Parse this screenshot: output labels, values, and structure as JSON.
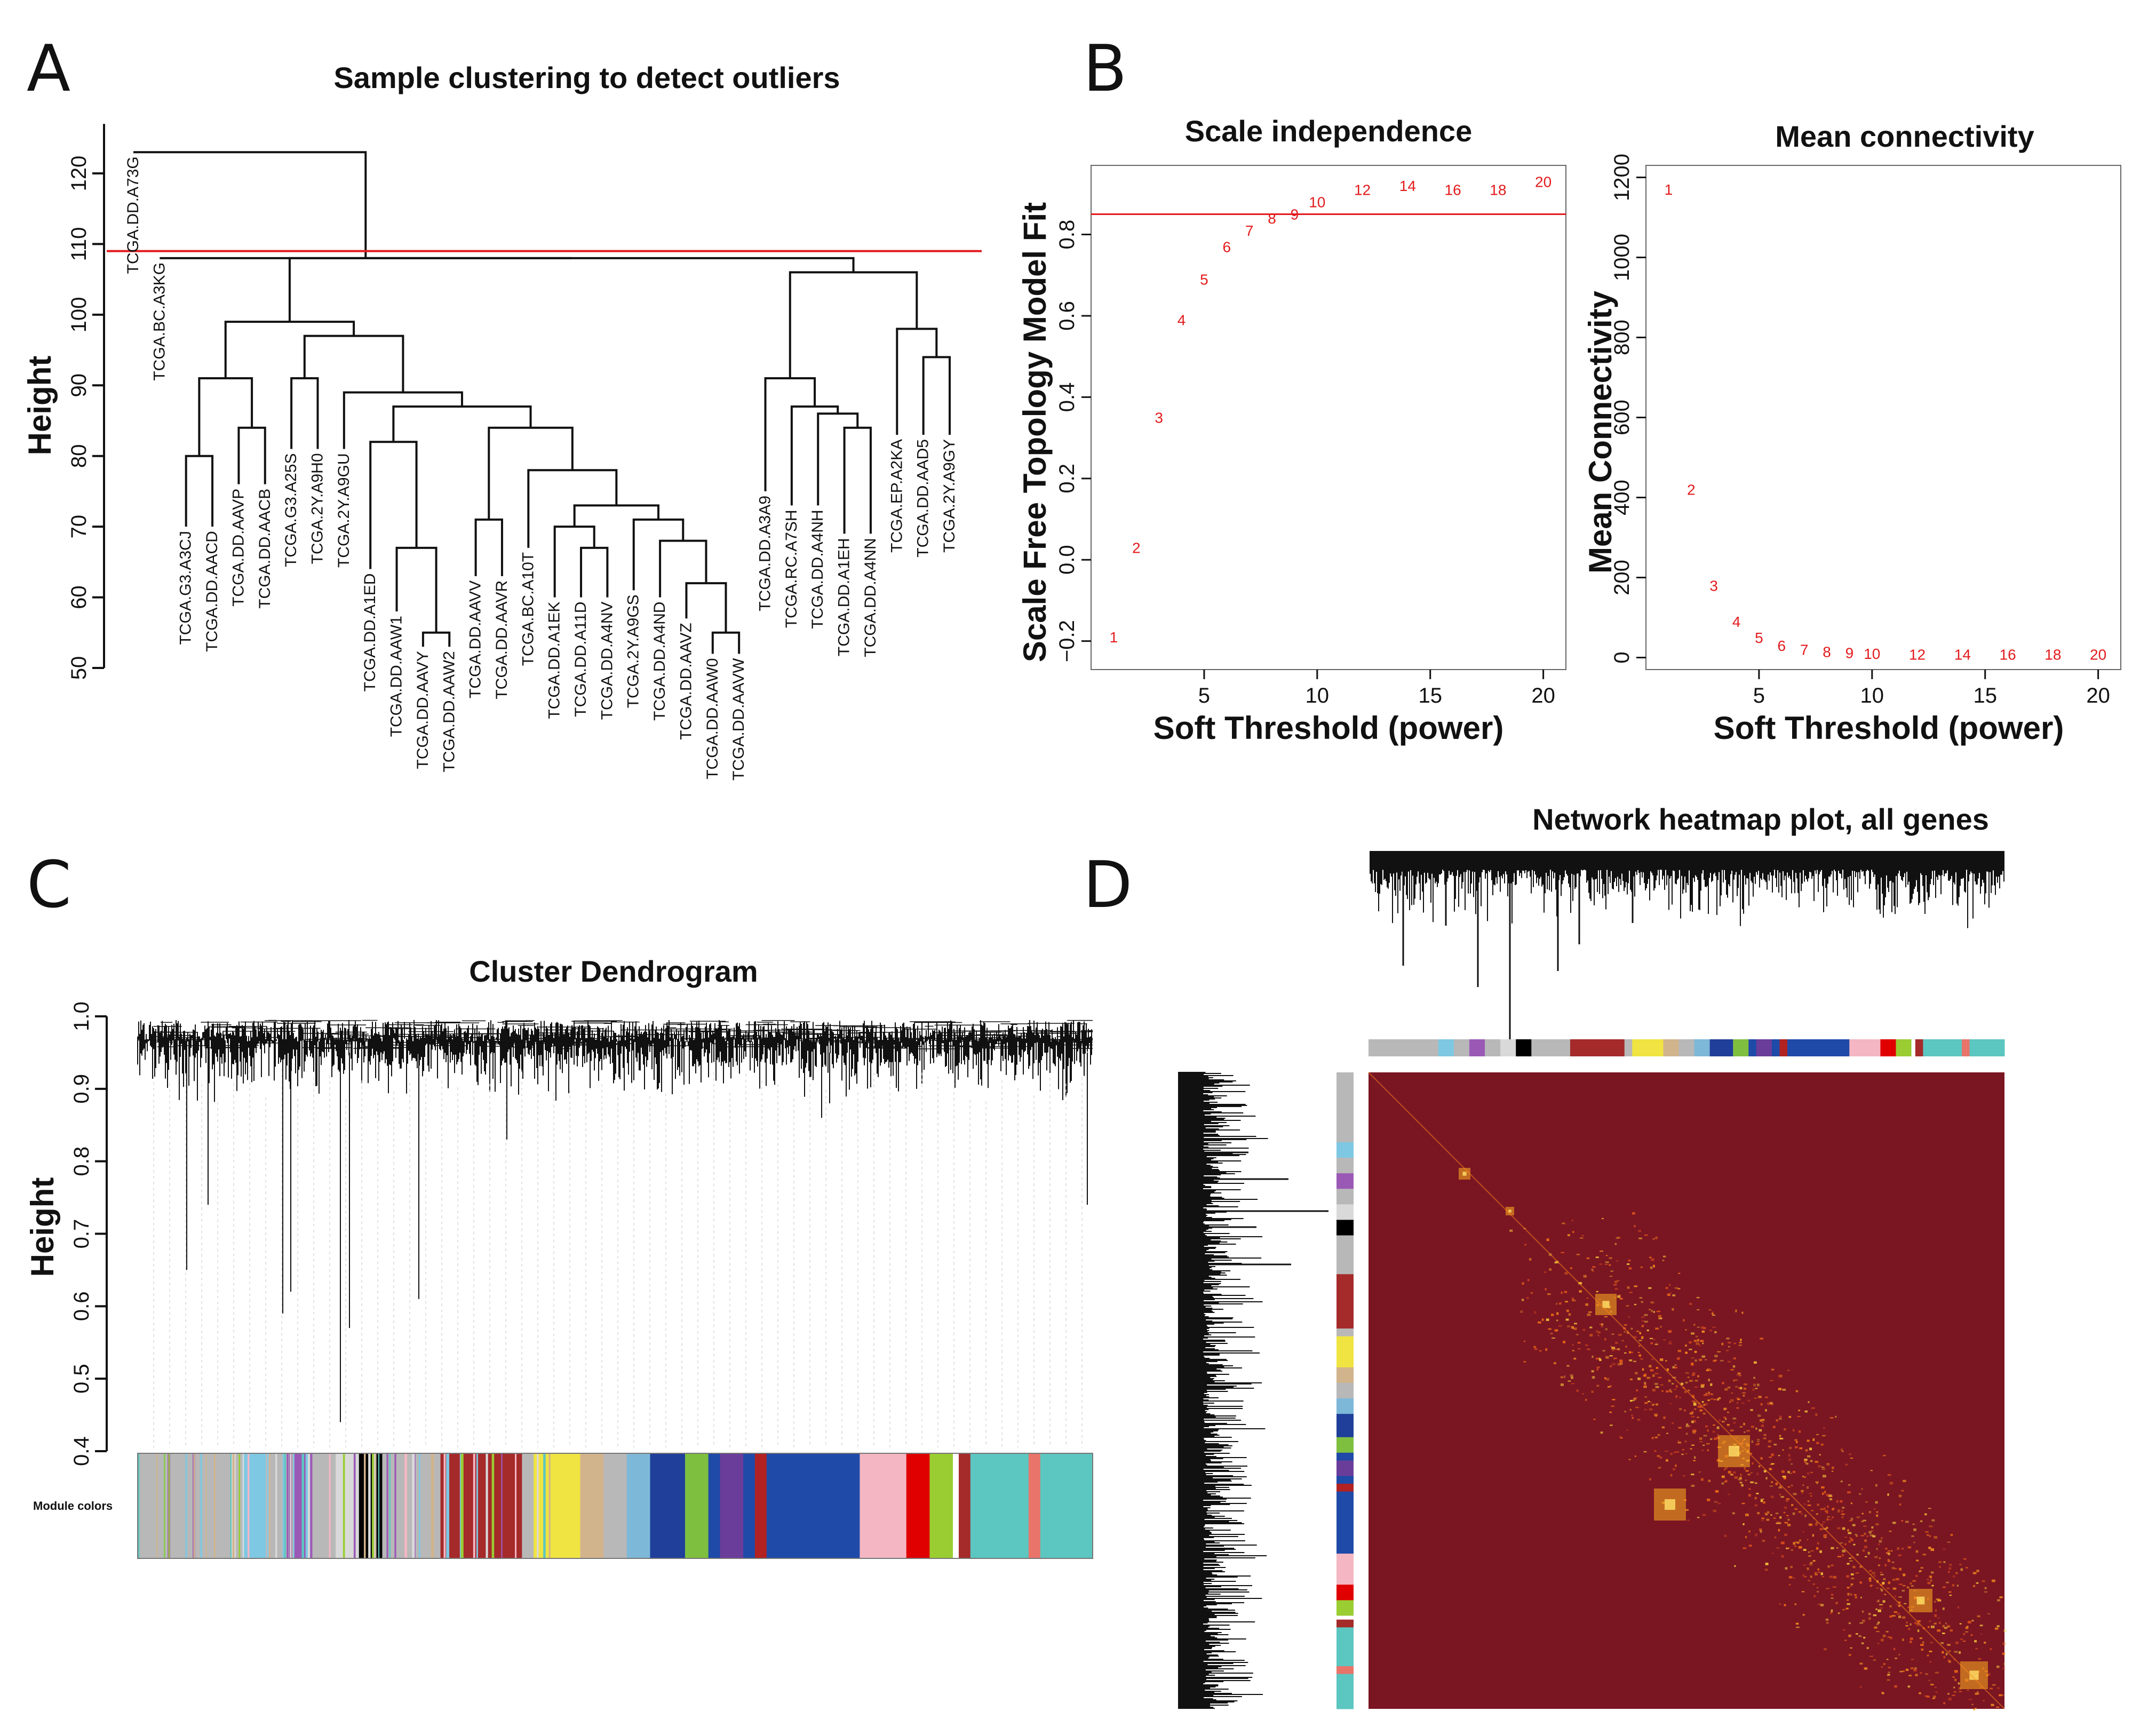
{
  "panels": {
    "A": "A",
    "B": "B",
    "C": "C",
    "D": "D"
  },
  "chart_data": [
    {
      "type": "dendrogram",
      "title": "Sample clustering to detect outliers",
      "ylabel": "Height",
      "yticks": [
        50,
        60,
        70,
        80,
        90,
        100,
        110,
        120
      ],
      "ylim": [
        50,
        125
      ],
      "cut_height": 109,
      "leaves": [
        {
          "label": "TCGA.DD.A73G",
          "height": 123
        },
        {
          "label": "TCGA.BC.A3KG",
          "height": 108
        },
        {
          "label": "TCGA.G3.A3CJ",
          "height": 70
        },
        {
          "label": "TCGA.DD.AACD",
          "height": 70
        },
        {
          "label": "TCGA.DD.AAVP",
          "height": 76
        },
        {
          "label": "TCGA.DD.AACB",
          "height": 76
        },
        {
          "label": "TCGA.G3.A25S",
          "height": 81
        },
        {
          "label": "TCGA.2Y.A9H0",
          "height": 81
        },
        {
          "label": "TCGA.2Y.A9GU",
          "height": 81
        },
        {
          "label": "TCGA.DD.A1ED",
          "height": 64
        },
        {
          "label": "TCGA.DD.AAW1",
          "height": 58
        },
        {
          "label": "TCGA.DD.AAVY",
          "height": 53
        },
        {
          "label": "TCGA.DD.AAW2",
          "height": 53
        },
        {
          "label": "TCGA.DD.AAVV",
          "height": 63
        },
        {
          "label": "TCGA.DD.AAVR",
          "height": 63
        },
        {
          "label": "TCGA.BC.A10T",
          "height": 67
        },
        {
          "label": "TCGA.DD.A1EK",
          "height": 60
        },
        {
          "label": "TCGA.DD.A11D",
          "height": 60
        },
        {
          "label": "TCGA.DD.A4NV",
          "height": 60
        },
        {
          "label": "TCGA.2Y.A9GS",
          "height": 61
        },
        {
          "label": "TCGA.DD.A4ND",
          "height": 60
        },
        {
          "label": "TCGA.DD.AAVZ",
          "height": 57
        },
        {
          "label": "TCGA.DD.AAW0",
          "height": 52
        },
        {
          "label": "TCGA.DD.AAVW",
          "height": 52
        },
        {
          "label": "TCGA.DD.A3A9",
          "height": 75
        },
        {
          "label": "TCGA.RC.A7SH",
          "height": 73
        },
        {
          "label": "TCGA.DD.A4NH",
          "height": 73
        },
        {
          "label": "TCGA.DD.A1EH",
          "height": 69
        },
        {
          "label": "TCGA.DD.A4NN",
          "height": 69
        },
        {
          "label": "TCGA.EP.A2KA",
          "height": 83
        },
        {
          "label": "TCGA.DD.AAD5",
          "height": 83
        },
        {
          "label": "TCGA.2Y.A9GY",
          "height": 83
        }
      ],
      "merges": [
        {
          "a": "L2",
          "b": "L3",
          "h": 80
        },
        {
          "a": "L4",
          "b": "L5",
          "h": 84
        },
        {
          "a": "M0",
          "b": "M1",
          "h": 91
        },
        {
          "a": "L6",
          "b": "L7",
          "h": 91
        },
        {
          "a": "L11",
          "b": "L12",
          "h": 55
        },
        {
          "a": "L10",
          "b": "M4",
          "h": 67
        },
        {
          "a": "L9",
          "b": "M5",
          "h": 82
        },
        {
          "a": "L13",
          "b": "L14",
          "h": 71
        },
        {
          "a": "L17",
          "b": "L18",
          "h": 67
        },
        {
          "a": "L16",
          "b": "M8",
          "h": 70
        },
        {
          "a": "L22",
          "b": "L23",
          "h": 55
        },
        {
          "a": "L21",
          "b": "M10",
          "h": 62
        },
        {
          "a": "L20",
          "b": "M11",
          "h": 68
        },
        {
          "a": "L19",
          "b": "M12",
          "h": 71
        },
        {
          "a": "M9",
          "b": "M13",
          "h": 73
        },
        {
          "a": "L15",
          "b": "M14",
          "h": 78
        },
        {
          "a": "M7",
          "b": "M15",
          "h": 84
        },
        {
          "a": "M6",
          "b": "M16",
          "h": 87
        },
        {
          "a": "L8",
          "b": "M17",
          "h": 89
        },
        {
          "a": "M3",
          "b": "M18",
          "h": 97
        },
        {
          "a": "M2",
          "b": "M19",
          "h": 99
        },
        {
          "a": "L27",
          "b": "L28",
          "h": 84
        },
        {
          "a": "L26",
          "b": "M21",
          "h": 86
        },
        {
          "a": "L25",
          "b": "M22",
          "h": 87
        },
        {
          "a": "L24",
          "b": "M23",
          "h": 91
        },
        {
          "a": "L30",
          "b": "L31",
          "h": 94
        },
        {
          "a": "L29",
          "b": "M25",
          "h": 98
        },
        {
          "a": "M24",
          "b": "M26",
          "h": 106
        },
        {
          "a": "M20",
          "b": "M27",
          "h": 108
        },
        {
          "a": "L1",
          "b": "M28",
          "h": 108
        },
        {
          "a": "L0",
          "b": "M29",
          "h": 123
        }
      ]
    },
    {
      "type": "scatter",
      "title": "Scale independence",
      "xlabel": "Soft Threshold (power)",
      "ylabel": "Scale Free Topology Model Fit",
      "xlim": [
        0,
        21
      ],
      "ylim": [
        -0.27,
        0.97
      ],
      "xticks": [
        5,
        10,
        15,
        20
      ],
      "yticks": [
        -0.2,
        0,
        0.2,
        0.4,
        0.6,
        0.8
      ],
      "ytick_labels": [
        "−0.2",
        "0.0",
        "0.2",
        "0.4",
        "0.6",
        "0.8"
      ],
      "hline": 0.85,
      "x": [
        1,
        2,
        3,
        4,
        5,
        6,
        7,
        8,
        9,
        10,
        12,
        14,
        16,
        18,
        20
      ],
      "y": [
        -0.19,
        0.03,
        0.35,
        0.59,
        0.69,
        0.77,
        0.81,
        0.84,
        0.85,
        0.88,
        0.91,
        0.92,
        0.91,
        0.91,
        0.93
      ],
      "point_labels": [
        "1",
        "2",
        "3",
        "4",
        "5",
        "6",
        "7",
        "8",
        "9",
        "10",
        "12",
        "14",
        "16",
        "18",
        "20"
      ]
    },
    {
      "type": "scatter",
      "title": "Mean connectivity",
      "xlabel": "Soft Threshold (power)",
      "ylabel": "Mean Connectivity",
      "xlim": [
        0,
        21
      ],
      "ylim": [
        -30,
        1230
      ],
      "xticks": [
        5,
        10,
        15,
        20
      ],
      "yticks": [
        0,
        200,
        400,
        600,
        800,
        1000,
        1200
      ],
      "hline": null,
      "x": [
        1,
        2,
        3,
        4,
        5,
        6,
        7,
        8,
        9,
        10,
        12,
        14,
        16,
        18,
        20
      ],
      "y": [
        1170,
        420,
        180,
        90,
        50,
        30,
        20,
        15,
        12,
        10,
        8,
        8,
        8,
        8,
        8
      ],
      "point_labels": [
        "1",
        "2",
        "3",
        "4",
        "5",
        "6",
        "7",
        "8",
        "9",
        "10",
        "12",
        "14",
        "16",
        "18",
        "20"
      ]
    },
    {
      "type": "dendrogram",
      "title": "Cluster Dendrogram",
      "ylabel": "Height",
      "yticks": [
        0.4,
        0.5,
        0.6,
        0.7,
        0.8,
        0.9,
        1.0
      ],
      "ylim": [
        0.4,
        1.0
      ],
      "module_label": "Module colors",
      "module_colors": [
        {
          "color": "#b8b8b8",
          "w": 0.09
        },
        {
          "color": "#7ec8e3",
          "w": 0.02
        },
        {
          "color": "#b8b8b8",
          "w": 0.02
        },
        {
          "color": "#9b59b6",
          "w": 0.02
        },
        {
          "color": "#b8b8b8",
          "w": 0.02
        },
        {
          "color": "#d9d9d9",
          "w": 0.02
        },
        {
          "color": "#000000",
          "w": 0.02
        },
        {
          "color": "#b8b8b8",
          "w": 0.05
        },
        {
          "color": "#a52a2a",
          "w": 0.07
        },
        {
          "color": "#b8b8b8",
          "w": 0.01
        },
        {
          "color": "#f0e442",
          "w": 0.04
        },
        {
          "color": "#d2b48c",
          "w": 0.02
        },
        {
          "color": "#b8b8b8",
          "w": 0.02
        },
        {
          "color": "#7db8d8",
          "w": 0.02
        },
        {
          "color": "#1f3f9a",
          "w": 0.03
        },
        {
          "color": "#7fbf3f",
          "w": 0.02
        },
        {
          "color": "#1f4aa8",
          "w": 0.01
        },
        {
          "color": "#6a3d9a",
          "w": 0.02
        },
        {
          "color": "#1f4aa8",
          "w": 0.01
        },
        {
          "color": "#b22222",
          "w": 0.01
        },
        {
          "color": "#1f4aa8",
          "w": 0.08
        },
        {
          "color": "#f4b6c2",
          "w": 0.04
        },
        {
          "color": "#e00000",
          "w": 0.02
        },
        {
          "color": "#9acd32",
          "w": 0.02
        },
        {
          "color": "#ffffff",
          "w": 0.005
        },
        {
          "color": "#a52a2a",
          "w": 0.01
        },
        {
          "color": "#5cc6c0",
          "w": 0.05
        },
        {
          "color": "#e9746a",
          "w": 0.01
        },
        {
          "color": "#5cc6c0",
          "w": 0.045
        }
      ]
    },
    {
      "type": "heatmap",
      "title": "Network heatmap plot, all genes"
    }
  ]
}
